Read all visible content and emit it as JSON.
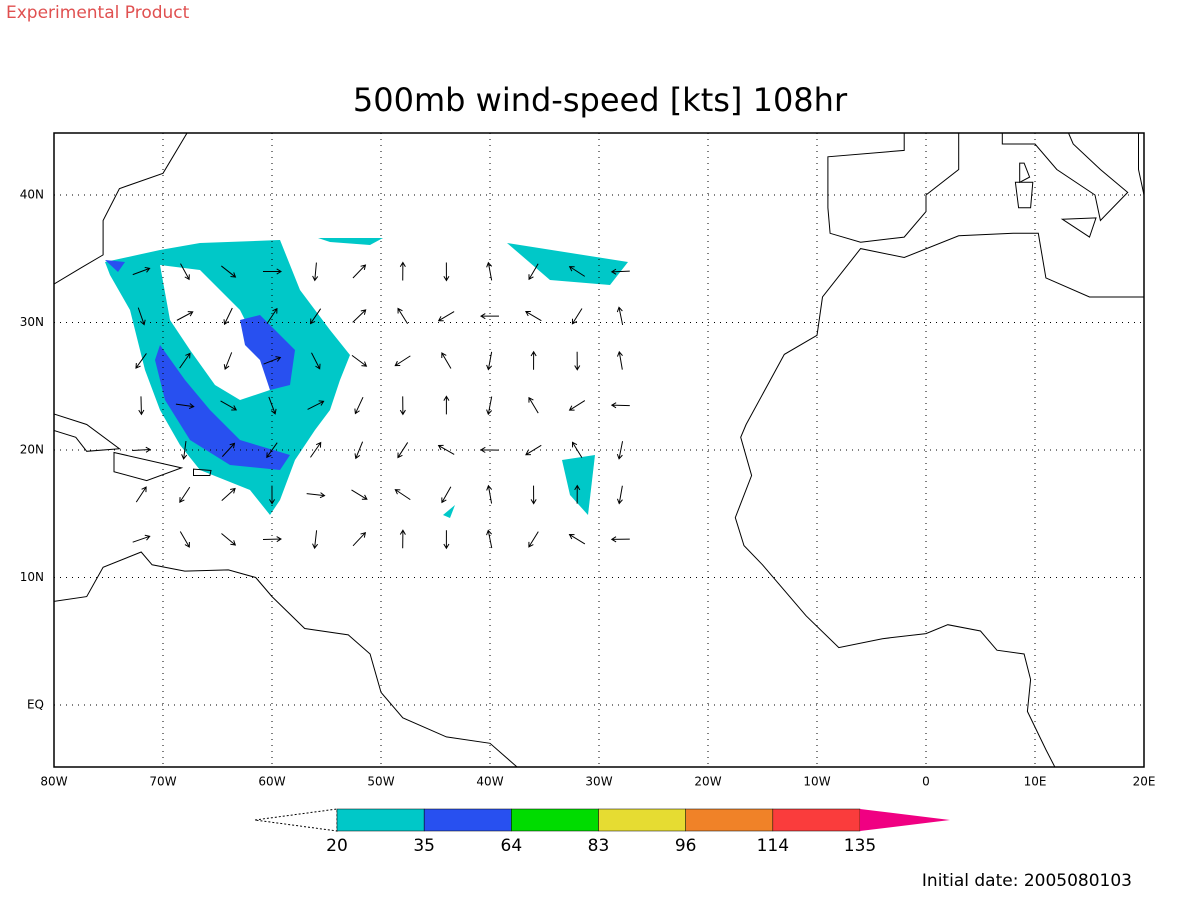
{
  "header": {
    "product": "Experimental Product"
  },
  "map": {
    "title": "500mb wind-speed [kts] 108hr",
    "lon_labels": [
      "80W",
      "70W",
      "60W",
      "50W",
      "40W",
      "30W",
      "20W",
      "10W",
      "0",
      "10E",
      "20E"
    ],
    "lat_labels": [
      "EQ",
      "10N",
      "20N",
      "30N",
      "40N"
    ]
  },
  "colorbar": {
    "levels": [
      20,
      35,
      64,
      83,
      96,
      114,
      135
    ],
    "colors": [
      "#00c8c8",
      "#2850f0",
      "#00dc00",
      "#e6dc32",
      "#f08228",
      "#fa3c3c",
      "#f00082"
    ]
  },
  "footer": {
    "initial_date": "Initial date: 2005080103"
  }
}
